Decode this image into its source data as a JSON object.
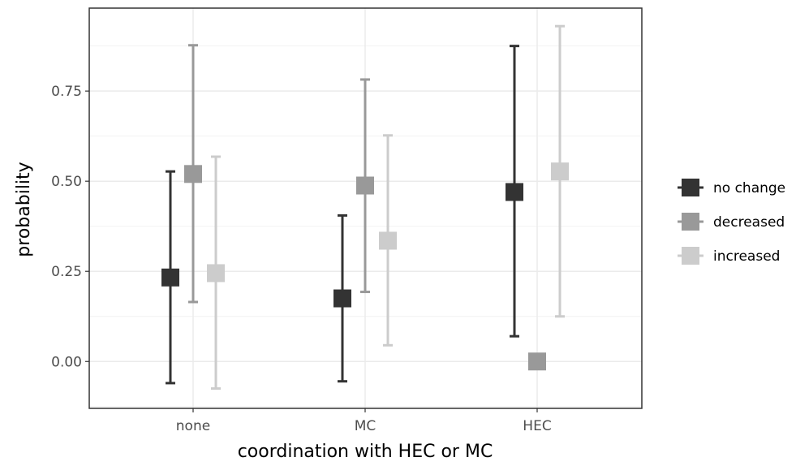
{
  "chart_data": {
    "type": "scatter",
    "subtype": "point-range",
    "title": "",
    "xlabel": "coordination with HEC or MC",
    "ylabel": "probability",
    "categories": [
      "none",
      "MC",
      "HEC"
    ],
    "ylim": [
      -0.13,
      0.98
    ],
    "yticks": [
      0.0,
      0.25,
      0.5,
      0.75
    ],
    "ytick_labels": [
      "0.00",
      "0.25",
      "0.50",
      "0.75"
    ],
    "grid": true,
    "legend_position": "right",
    "series": [
      {
        "name": "no change",
        "color": "#333333",
        "values": [
          0.233,
          0.175,
          0.47
        ],
        "lower": [
          -0.06,
          -0.055,
          0.07
        ],
        "upper": [
          0.527,
          0.405,
          0.875
        ]
      },
      {
        "name": "decreased",
        "color": "#999999",
        "values": [
          0.52,
          0.488,
          0.0
        ],
        "lower": [
          0.165,
          0.193,
          null
        ],
        "upper": [
          0.877,
          0.782,
          null
        ]
      },
      {
        "name": "increased",
        "color": "#cccccc",
        "values": [
          0.245,
          0.335,
          0.527
        ],
        "lower": [
          -0.075,
          0.045,
          0.125
        ],
        "upper": [
          0.568,
          0.627,
          0.93
        ]
      }
    ]
  }
}
